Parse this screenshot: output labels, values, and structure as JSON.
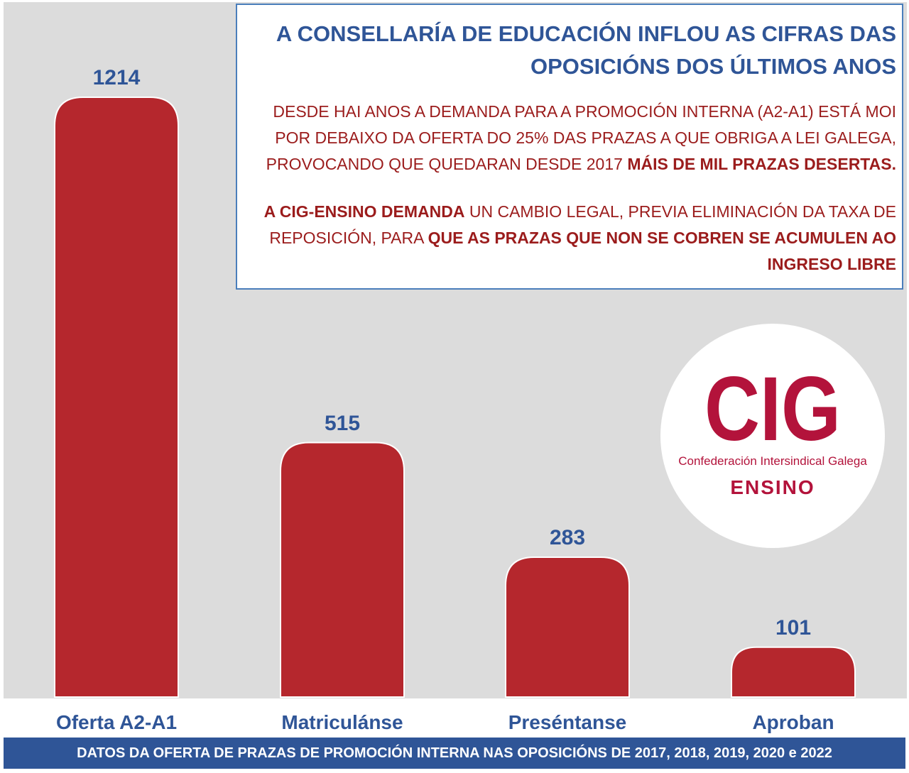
{
  "chart_data": {
    "type": "bar",
    "categories": [
      "Oferta A2-A1",
      "Matriculánse",
      "Preséntanse",
      "Aproban"
    ],
    "values": [
      1214,
      515,
      283,
      101
    ],
    "bar_color": "#b5272d",
    "label_color": "#2f5597",
    "background_color": "#dcdcdc",
    "title": "",
    "xlabel": "",
    "ylabel": ""
  },
  "info_box": {
    "title": "A CONSELLARÍA DE EDUCACIÓN INFLOU AS CIFRAS DAS OPOSICIÓNS DOS ÚLTIMOS ANOS",
    "p1": {
      "line1": "DESDE HAI ANOS A DEMANDA PARA A PROMOCIÓN INTERNA (A2-A1) ESTÁ MOI",
      "line2": "POR DEBAIXO DA OFERTA DO 25% DAS PRAZAS A QUE OBRIGA A LEI GALEGA,",
      "line3_a": "PROVOCANDO QUE QUEDARAN DESDE 2017 ",
      "line3_b": "MÁIS DE MIL PRAZAS DESERTAS."
    },
    "p2": {
      "part1": "A CIG-ENSINO DEMANDA",
      "part2": " UN CAMBIO LEGAL, PREVIA ELIMINACIÓN DA TAXA DE REPOSICIÓN, PARA ",
      "part3": "QUE AS PRAZAS QUE NON SE COBREN SE ACUMULEN AO INGRESO LIBRE"
    },
    "text_color": "#9b1c1c",
    "title_color": "#2f5597"
  },
  "logo": {
    "mark": "CIG",
    "name": "Confederación Intersindical Galega",
    "sub": "ENSINO",
    "color": "#b3133b"
  },
  "footer": {
    "text": "DATOS DA OFERTA DE PRAZAS DE PROMOCIÓN INTERNA NAS OPOSICIÓNS DE 2017, 2018, 2019, 2020 e 2022"
  }
}
